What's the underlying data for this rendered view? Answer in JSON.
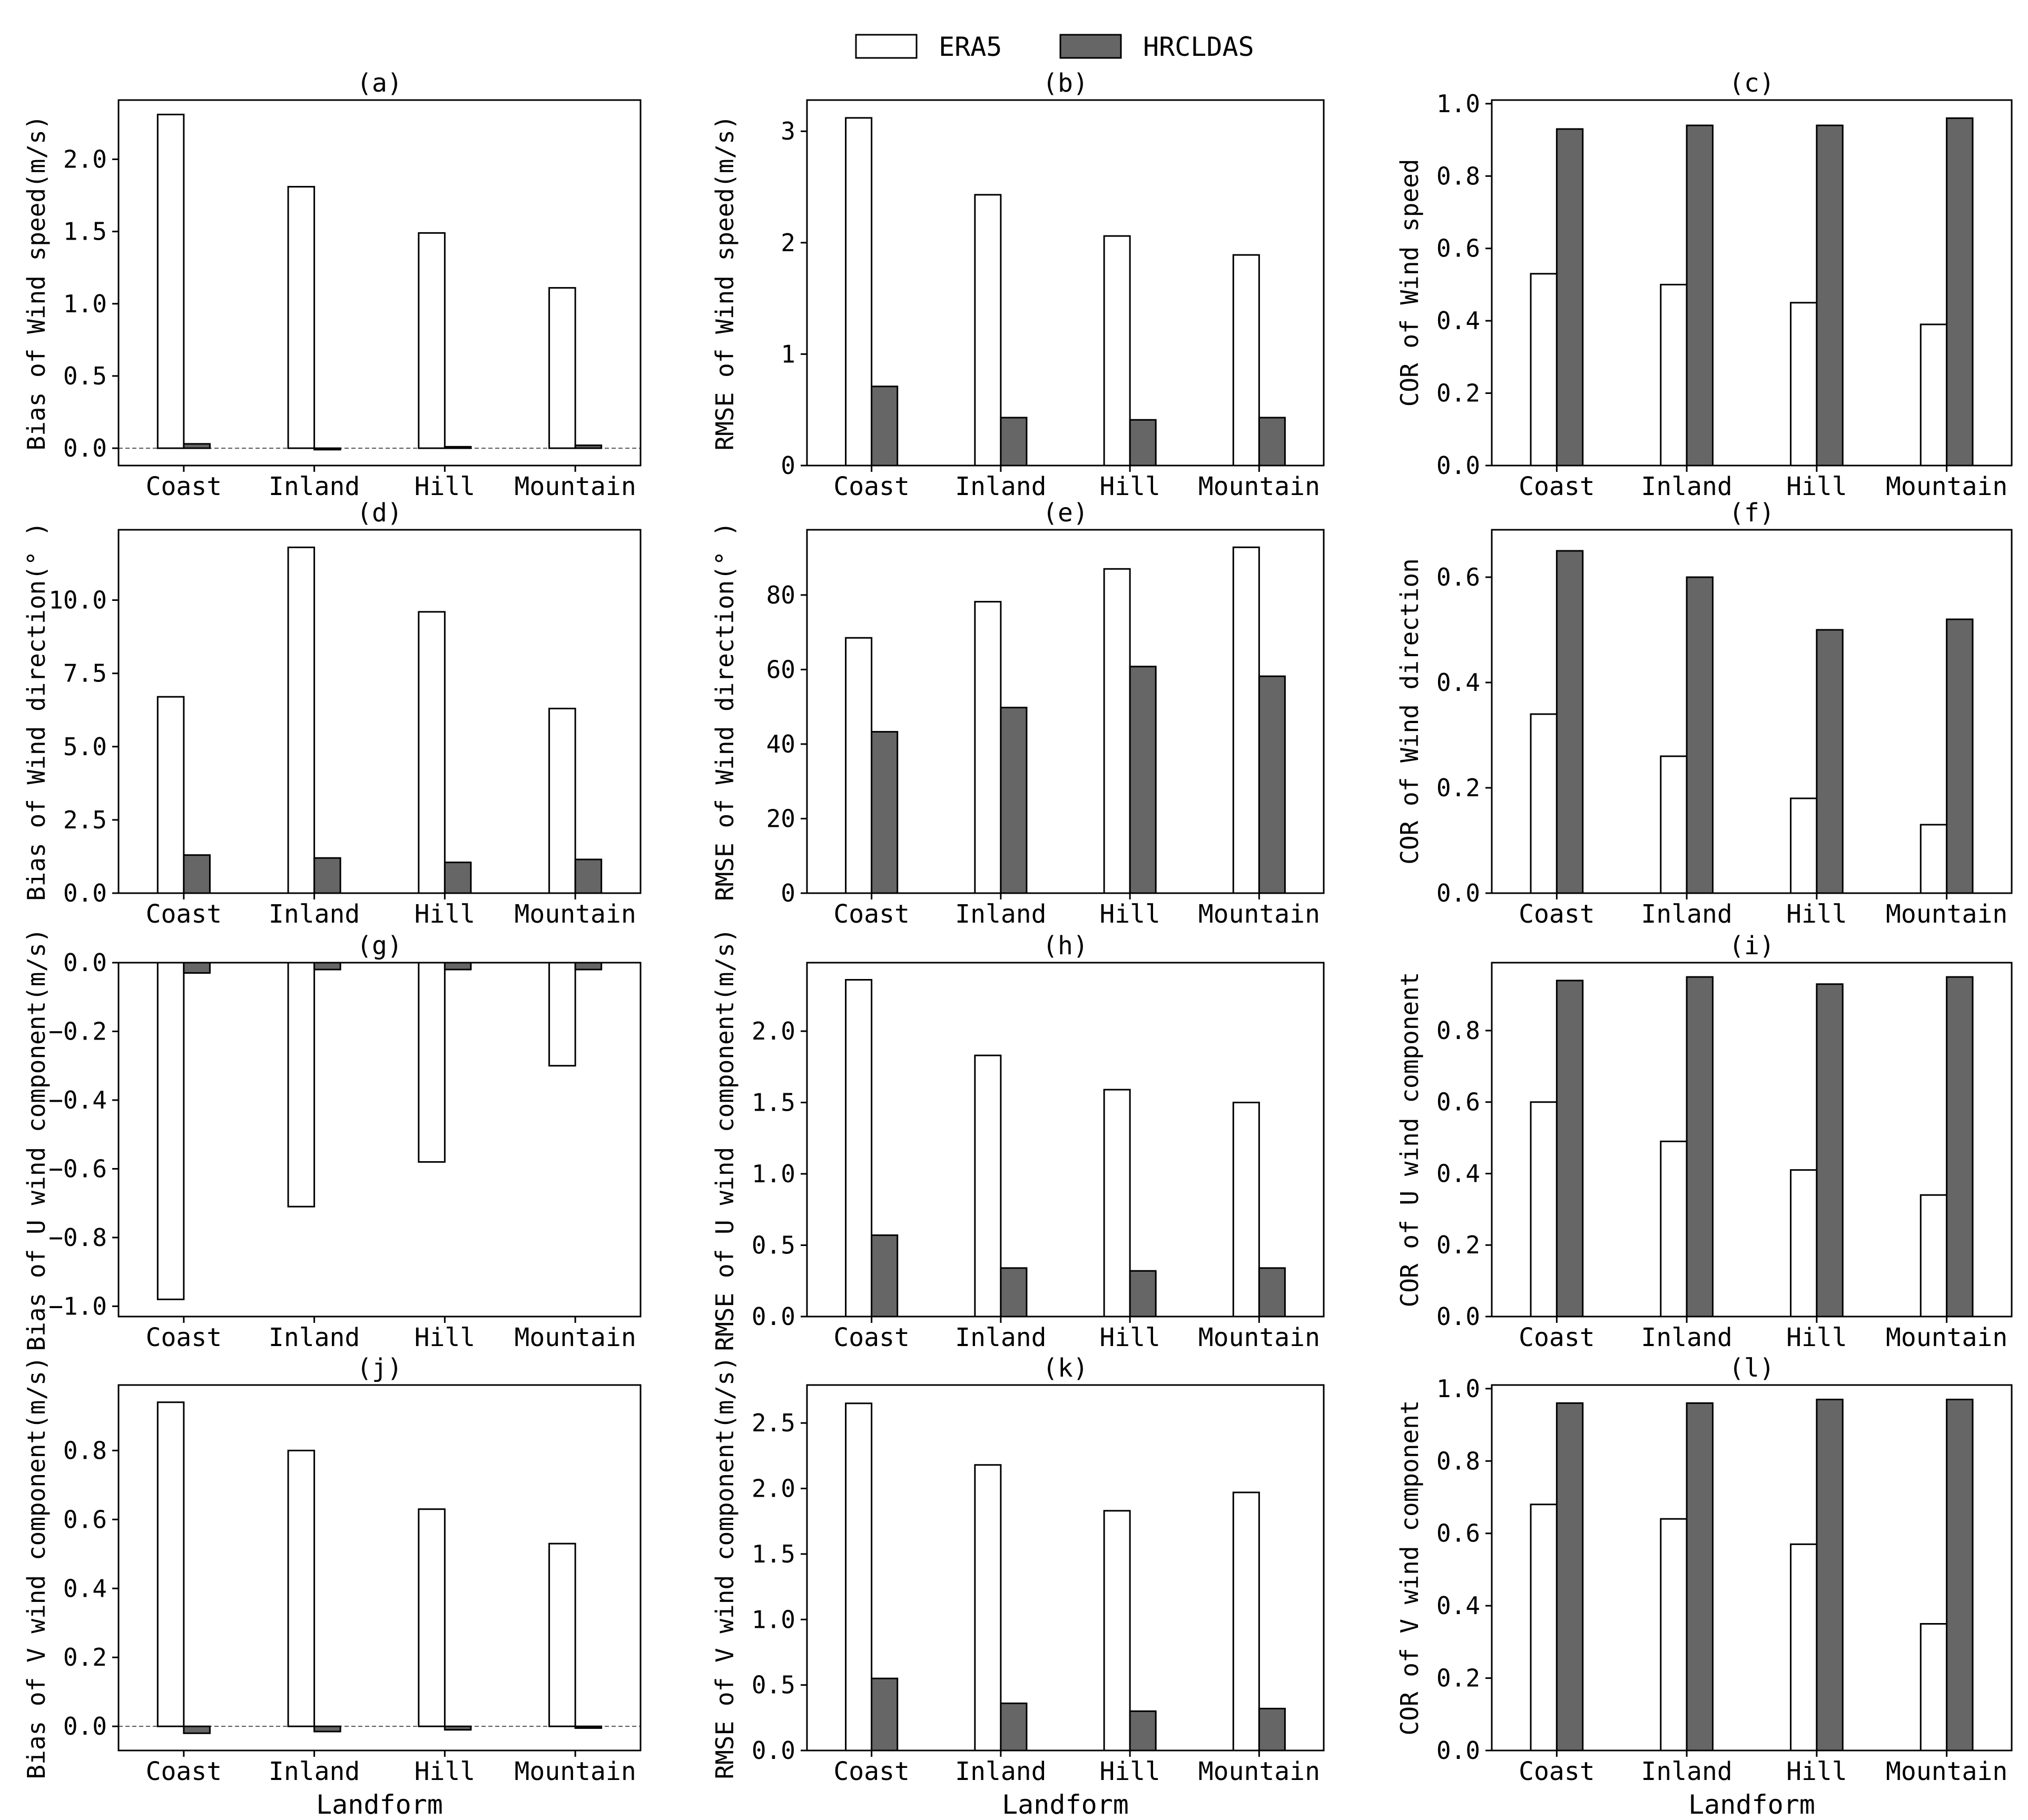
{
  "legend": {
    "series": [
      {
        "name": "ERA5",
        "color": "#ffffff"
      },
      {
        "name": "HRCLDAS",
        "color": "#666666"
      }
    ]
  },
  "colors": {
    "era5": "#ffffff",
    "hrcldas": "#666666",
    "stroke": "#000000"
  },
  "shared_xlabel": "Landform",
  "chart_data": [
    {
      "id": "a",
      "type": "bar",
      "title": "(a)",
      "ylabel": "Bias of Wind speed(m/s)",
      "xlabel": "",
      "categories": [
        "Coast",
        "Inland",
        "Hill",
        "Mountain"
      ],
      "series": [
        {
          "name": "ERA5",
          "values": [
            2.31,
            1.81,
            1.49,
            1.11
          ]
        },
        {
          "name": "HRCLDAS",
          "values": [
            0.03,
            -0.01,
            0.01,
            0.02
          ]
        }
      ],
      "ylim": [
        -0.12,
        2.41
      ],
      "yticks": [
        0.0,
        0.5,
        1.0,
        1.5,
        2.0
      ],
      "ytick_labels": [
        "0.0",
        "0.5",
        "1.0",
        "1.5",
        "2.0"
      ],
      "zero_line": true
    },
    {
      "id": "b",
      "type": "bar",
      "title": "(b)",
      "ylabel": "RMSE of Wind speed(m/s)",
      "xlabel": "",
      "categories": [
        "Coast",
        "Inland",
        "Hill",
        "Mountain"
      ],
      "series": [
        {
          "name": "ERA5",
          "values": [
            3.12,
            2.43,
            2.06,
            1.89
          ]
        },
        {
          "name": "HRCLDAS",
          "values": [
            0.71,
            0.43,
            0.41,
            0.43
          ]
        }
      ],
      "ylim": [
        0,
        3.28
      ],
      "yticks": [
        0,
        1,
        2,
        3
      ],
      "ytick_labels": [
        "0",
        "1",
        "2",
        "3"
      ],
      "zero_line": false
    },
    {
      "id": "c",
      "type": "bar",
      "title": "(c)",
      "ylabel": "COR of Wind speed",
      "xlabel": "",
      "categories": [
        "Coast",
        "Inland",
        "Hill",
        "Mountain"
      ],
      "series": [
        {
          "name": "ERA5",
          "values": [
            0.53,
            0.5,
            0.45,
            0.39
          ]
        },
        {
          "name": "HRCLDAS",
          "values": [
            0.93,
            0.94,
            0.94,
            0.96
          ]
        }
      ],
      "ylim": [
        0,
        1.01
      ],
      "yticks": [
        0.0,
        0.2,
        0.4,
        0.6,
        0.8,
        1.0
      ],
      "ytick_labels": [
        "0.0",
        "0.2",
        "0.4",
        "0.6",
        "0.8",
        "1.0"
      ],
      "zero_line": false
    },
    {
      "id": "d",
      "type": "bar",
      "title": "(d)",
      "ylabel": "Bias of Wind direction(° )",
      "xlabel": "",
      "categories": [
        "Coast",
        "Inland",
        "Hill",
        "Mountain"
      ],
      "series": [
        {
          "name": "ERA5",
          "values": [
            6.7,
            11.8,
            9.6,
            6.3
          ]
        },
        {
          "name": "HRCLDAS",
          "values": [
            1.3,
            1.2,
            1.05,
            1.15
          ]
        }
      ],
      "ylim": [
        0,
        12.4
      ],
      "yticks": [
        0.0,
        2.5,
        5.0,
        7.5,
        10.0
      ],
      "ytick_labels": [
        "0.0",
        "2.5",
        "5.0",
        "7.5",
        "10.0"
      ],
      "zero_line": false
    },
    {
      "id": "e",
      "type": "bar",
      "title": "(e)",
      "ylabel": "RMSE of Wind direction(° )",
      "xlabel": "",
      "categories": [
        "Coast",
        "Inland",
        "Hill",
        "Mountain"
      ],
      "series": [
        {
          "name": "ERA5",
          "values": [
            68.5,
            78.2,
            87.0,
            92.8
          ]
        },
        {
          "name": "HRCLDAS",
          "values": [
            43.3,
            49.8,
            60.8,
            58.2
          ]
        }
      ],
      "ylim": [
        0,
        97.5
      ],
      "yticks": [
        0,
        20,
        40,
        60,
        80
      ],
      "ytick_labels": [
        "0",
        "20",
        "40",
        "60",
        "80"
      ],
      "zero_line": false
    },
    {
      "id": "f",
      "type": "bar",
      "title": "(f)",
      "ylabel": "COR of Wind direction",
      "xlabel": "",
      "categories": [
        "Coast",
        "Inland",
        "Hill",
        "Mountain"
      ],
      "series": [
        {
          "name": "ERA5",
          "values": [
            0.34,
            0.26,
            0.18,
            0.13
          ]
        },
        {
          "name": "HRCLDAS",
          "values": [
            0.65,
            0.6,
            0.5,
            0.52
          ]
        }
      ],
      "ylim": [
        0,
        0.69
      ],
      "yticks": [
        0.0,
        0.2,
        0.4,
        0.6
      ],
      "ytick_labels": [
        "0.0",
        "0.2",
        "0.4",
        "0.6"
      ],
      "zero_line": false
    },
    {
      "id": "g",
      "type": "bar",
      "title": "(g)",
      "ylabel": "Bias of U wind component(m/s)",
      "xlabel": "",
      "categories": [
        "Coast",
        "Inland",
        "Hill",
        "Mountain"
      ],
      "series": [
        {
          "name": "ERA5",
          "values": [
            -0.98,
            -0.71,
            -0.58,
            -0.3
          ]
        },
        {
          "name": "HRCLDAS",
          "values": [
            -0.03,
            -0.02,
            -0.02,
            -0.02
          ]
        }
      ],
      "ylim": [
        -1.03,
        0.0
      ],
      "yticks": [
        -1.0,
        -0.8,
        -0.6,
        -0.4,
        -0.2,
        0.0
      ],
      "ytick_labels": [
        "−1.0",
        "−0.8",
        "−0.6",
        "−0.4",
        "−0.2",
        "0.0"
      ],
      "zero_line": false
    },
    {
      "id": "h",
      "type": "bar",
      "title": "(h)",
      "ylabel": "RMSE of U wind component(m/s)",
      "xlabel": "",
      "categories": [
        "Coast",
        "Inland",
        "Hill",
        "Mountain"
      ],
      "series": [
        {
          "name": "ERA5",
          "values": [
            2.36,
            1.83,
            1.59,
            1.5
          ]
        },
        {
          "name": "HRCLDAS",
          "values": [
            0.57,
            0.34,
            0.32,
            0.34
          ]
        }
      ],
      "ylim": [
        0,
        2.48
      ],
      "yticks": [
        0.0,
        0.5,
        1.0,
        1.5,
        2.0
      ],
      "ytick_labels": [
        "0.0",
        "0.5",
        "1.0",
        "1.5",
        "2.0"
      ],
      "zero_line": false
    },
    {
      "id": "i",
      "type": "bar",
      "title": "(i)",
      "ylabel": "COR of U wind component",
      "xlabel": "",
      "categories": [
        "Coast",
        "Inland",
        "Hill",
        "Mountain"
      ],
      "series": [
        {
          "name": "ERA5",
          "values": [
            0.6,
            0.49,
            0.41,
            0.34
          ]
        },
        {
          "name": "HRCLDAS",
          "values": [
            0.94,
            0.95,
            0.93,
            0.95
          ]
        }
      ],
      "ylim": [
        0,
        0.99
      ],
      "yticks": [
        0.0,
        0.2,
        0.4,
        0.6,
        0.8
      ],
      "ytick_labels": [
        "0.0",
        "0.2",
        "0.4",
        "0.6",
        "0.8"
      ],
      "zero_line": false
    },
    {
      "id": "j",
      "type": "bar",
      "title": "(j)",
      "ylabel": "Bias of V wind component(m/s)",
      "xlabel": "Landform",
      "categories": [
        "Coast",
        "Inland",
        "Hill",
        "Mountain"
      ],
      "series": [
        {
          "name": "ERA5",
          "values": [
            0.94,
            0.8,
            0.63,
            0.53
          ]
        },
        {
          "name": "HRCLDAS",
          "values": [
            -0.02,
            -0.015,
            -0.01,
            -0.005
          ]
        }
      ],
      "ylim": [
        -0.07,
        0.99
      ],
      "yticks": [
        0.0,
        0.2,
        0.4,
        0.6,
        0.8
      ],
      "ytick_labels": [
        "0.0",
        "0.2",
        "0.4",
        "0.6",
        "0.8"
      ],
      "zero_line": true
    },
    {
      "id": "k",
      "type": "bar",
      "title": "(k)",
      "ylabel": "RMSE of V wind component(m/s)",
      "xlabel": "Landform",
      "categories": [
        "Coast",
        "Inland",
        "Hill",
        "Mountain"
      ],
      "series": [
        {
          "name": "ERA5",
          "values": [
            2.65,
            2.18,
            1.83,
            1.97
          ]
        },
        {
          "name": "HRCLDAS",
          "values": [
            0.55,
            0.36,
            0.3,
            0.32
          ]
        }
      ],
      "ylim": [
        0,
        2.79
      ],
      "yticks": [
        0.0,
        0.5,
        1.0,
        1.5,
        2.0,
        2.5
      ],
      "ytick_labels": [
        "0.0",
        "0.5",
        "1.0",
        "1.5",
        "2.0",
        "2.5"
      ],
      "zero_line": false
    },
    {
      "id": "l",
      "type": "bar",
      "title": "(l)",
      "ylabel": "COR of V wind component",
      "xlabel": "Landform",
      "categories": [
        "Coast",
        "Inland",
        "Hill",
        "Mountain"
      ],
      "series": [
        {
          "name": "ERA5",
          "values": [
            0.68,
            0.64,
            0.57,
            0.35
          ]
        },
        {
          "name": "HRCLDAS",
          "values": [
            0.96,
            0.96,
            0.97,
            0.97
          ]
        }
      ],
      "ylim": [
        0,
        1.01
      ],
      "yticks": [
        0.0,
        0.2,
        0.4,
        0.6,
        0.8,
        1.0
      ],
      "ytick_labels": [
        "0.0",
        "0.2",
        "0.4",
        "0.6",
        "0.8",
        "1.0"
      ],
      "zero_line": false
    }
  ]
}
